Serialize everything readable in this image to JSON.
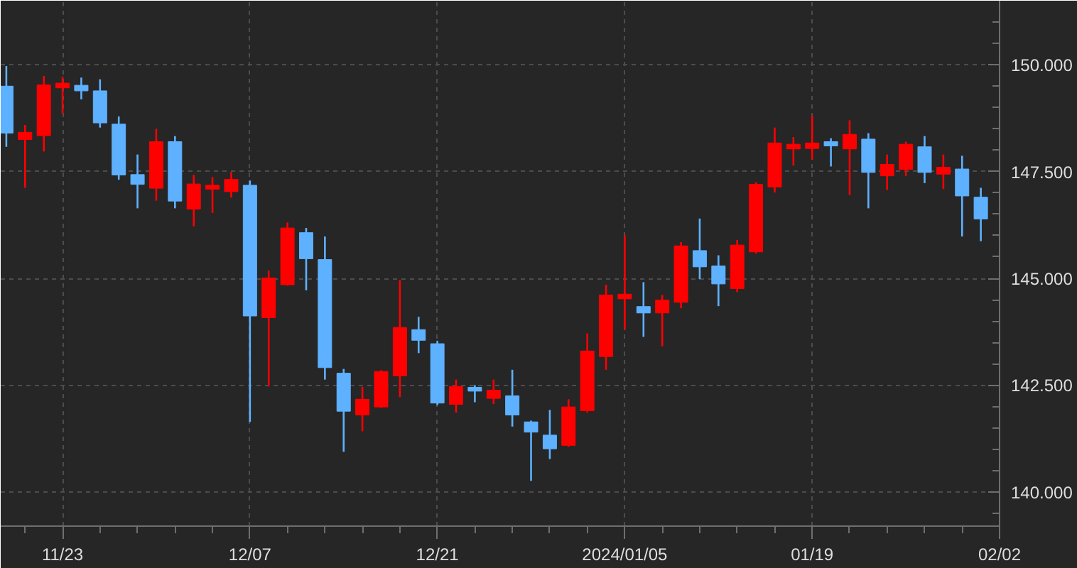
{
  "chart_data": {
    "type": "candlestick",
    "categories": [
      null,
      null,
      null,
      "11/23",
      null,
      null,
      null,
      null,
      null,
      null,
      null,
      null,
      null,
      "12/07",
      null,
      null,
      null,
      null,
      null,
      null,
      null,
      null,
      null,
      "12/21",
      null,
      null,
      null,
      null,
      null,
      null,
      null,
      null,
      null,
      "2024/01/05",
      null,
      null,
      null,
      null,
      null,
      null,
      null,
      null,
      null,
      "01/19",
      null,
      null,
      null,
      null,
      null,
      null,
      null,
      null,
      null,
      "02/02"
    ],
    "ohlc": [
      [
        149.5,
        149.97,
        148.08,
        148.4
      ],
      [
        148.25,
        148.59,
        147.12,
        148.42
      ],
      [
        148.34,
        149.74,
        147.97,
        149.53
      ],
      [
        149.46,
        149.72,
        148.86,
        149.57
      ],
      [
        149.52,
        149.7,
        149.19,
        149.39
      ],
      [
        149.39,
        149.66,
        148.53,
        148.64
      ],
      [
        148.61,
        148.79,
        147.31,
        147.42
      ],
      [
        147.43,
        147.9,
        146.64,
        147.2
      ],
      [
        147.11,
        148.5,
        146.82,
        148.2
      ],
      [
        148.2,
        148.33,
        146.64,
        146.81
      ],
      [
        146.62,
        147.42,
        146.22,
        147.21
      ],
      [
        147.09,
        147.37,
        146.53,
        147.18
      ],
      [
        147.03,
        147.49,
        146.89,
        147.32
      ],
      [
        147.18,
        147.29,
        141.64,
        144.12
      ],
      [
        144.08,
        145.18,
        142.47,
        145.01
      ],
      [
        144.85,
        146.31,
        144.83,
        146.18
      ],
      [
        146.07,
        146.18,
        144.72,
        145.46
      ],
      [
        145.44,
        145.98,
        142.63,
        142.91
      ],
      [
        142.78,
        142.88,
        140.94,
        141.89
      ],
      [
        141.8,
        142.46,
        141.42,
        142.17
      ],
      [
        141.99,
        142.85,
        141.97,
        142.82
      ],
      [
        142.72,
        144.96,
        142.22,
        143.85
      ],
      [
        143.8,
        144.1,
        143.25,
        143.55
      ],
      [
        143.47,
        143.54,
        142.03,
        142.08
      ],
      [
        142.05,
        142.63,
        141.86,
        142.47
      ],
      [
        142.45,
        142.5,
        142.1,
        142.36
      ],
      [
        142.19,
        142.63,
        142.06,
        142.38
      ],
      [
        142.25,
        142.86,
        141.53,
        141.8
      ],
      [
        141.64,
        141.67,
        140.26,
        141.4
      ],
      [
        141.33,
        141.92,
        140.77,
        141.01
      ],
      [
        141.09,
        142.17,
        141.06,
        141.99
      ],
      [
        141.9,
        143.71,
        141.86,
        143.3
      ],
      [
        143.17,
        144.85,
        142.86,
        144.61
      ],
      [
        144.52,
        146.01,
        143.8,
        144.63
      ],
      [
        144.34,
        144.91,
        143.63,
        144.19
      ],
      [
        144.19,
        144.61,
        143.41,
        144.49
      ],
      [
        144.44,
        145.85,
        144.3,
        145.76
      ],
      [
        145.65,
        146.4,
        144.98,
        145.27
      ],
      [
        145.29,
        145.54,
        144.35,
        144.87
      ],
      [
        144.76,
        145.9,
        144.68,
        145.78
      ],
      [
        145.62,
        147.25,
        145.58,
        147.2
      ],
      [
        147.14,
        148.53,
        147.01,
        148.17
      ],
      [
        148.03,
        148.31,
        147.64,
        148.14
      ],
      [
        148.04,
        148.81,
        147.78,
        148.17
      ],
      [
        148.2,
        148.28,
        147.62,
        148.1
      ],
      [
        148.03,
        148.7,
        146.95,
        148.37
      ],
      [
        148.26,
        148.4,
        146.64,
        147.48
      ],
      [
        147.4,
        147.9,
        147.07,
        147.67
      ],
      [
        147.55,
        148.2,
        147.4,
        148.14
      ],
      [
        148.08,
        148.33,
        147.23,
        147.48
      ],
      [
        147.44,
        147.9,
        147.09,
        147.6
      ],
      [
        147.56,
        147.87,
        145.98,
        146.93
      ],
      [
        146.9,
        147.12,
        145.87,
        146.39
      ],
      null
    ],
    "colors": [
      "#5eb1ff",
      "#ff0000",
      "#ff0000",
      "#ff0000",
      "#5eb1ff",
      "#5eb1ff",
      "#5eb1ff",
      "#5eb1ff",
      "#ff0000",
      "#5eb1ff",
      "#ff0000",
      "#ff0000",
      "#ff0000",
      "#5eb1ff",
      "#ff0000",
      "#ff0000",
      "#5eb1ff",
      "#5eb1ff",
      "#5eb1ff",
      "#ff0000",
      "#ff0000",
      "#ff0000",
      "#5eb1ff",
      "#5eb1ff",
      "#ff0000",
      "#5eb1ff",
      "#ff0000",
      "#5eb1ff",
      "#5eb1ff",
      "#5eb1ff",
      "#ff0000",
      "#ff0000",
      "#ff0000",
      "#ff0000",
      "#5eb1ff",
      "#ff0000",
      "#ff0000",
      "#5eb1ff",
      "#5eb1ff",
      "#ff0000",
      "#ff0000",
      "#ff0000",
      "#ff0000",
      "#ff0000",
      "#5eb1ff",
      "#ff0000",
      "#5eb1ff",
      "#ff0000",
      "#ff0000",
      "#5eb1ff",
      "#ff0000",
      "#5eb1ff",
      "#5eb1ff",
      null
    ],
    "ylim": [
      139.2,
      151.5
    ],
    "yticks": [
      {
        "value": 139.5,
        "label": null
      },
      {
        "value": 140,
        "label": "140.000"
      },
      {
        "value": 140.5,
        "label": null
      },
      {
        "value": 141,
        "label": null
      },
      {
        "value": 141.5,
        "label": null
      },
      {
        "value": 142,
        "label": null
      },
      {
        "value": 142.5,
        "label": "142.500"
      },
      {
        "value": 143,
        "label": null
      },
      {
        "value": 143.5,
        "label": null
      },
      {
        "value": 144,
        "label": null
      },
      {
        "value": 144.5,
        "label": null
      },
      {
        "value": 145,
        "label": "145.000"
      },
      {
        "value": 145.5,
        "label": null
      },
      {
        "value": 146,
        "label": null
      },
      {
        "value": 146.5,
        "label": null
      },
      {
        "value": 147,
        "label": null
      },
      {
        "value": 147.5,
        "label": "147.500"
      },
      {
        "value": 148,
        "label": null
      },
      {
        "value": 148.5,
        "label": null
      },
      {
        "value": 149,
        "label": null
      },
      {
        "value": 149.5,
        "label": null
      },
      {
        "value": 150,
        "label": "150.000"
      },
      {
        "value": 150.5,
        "label": null
      },
      {
        "value": 151,
        "label": null
      }
    ],
    "grid": true
  }
}
